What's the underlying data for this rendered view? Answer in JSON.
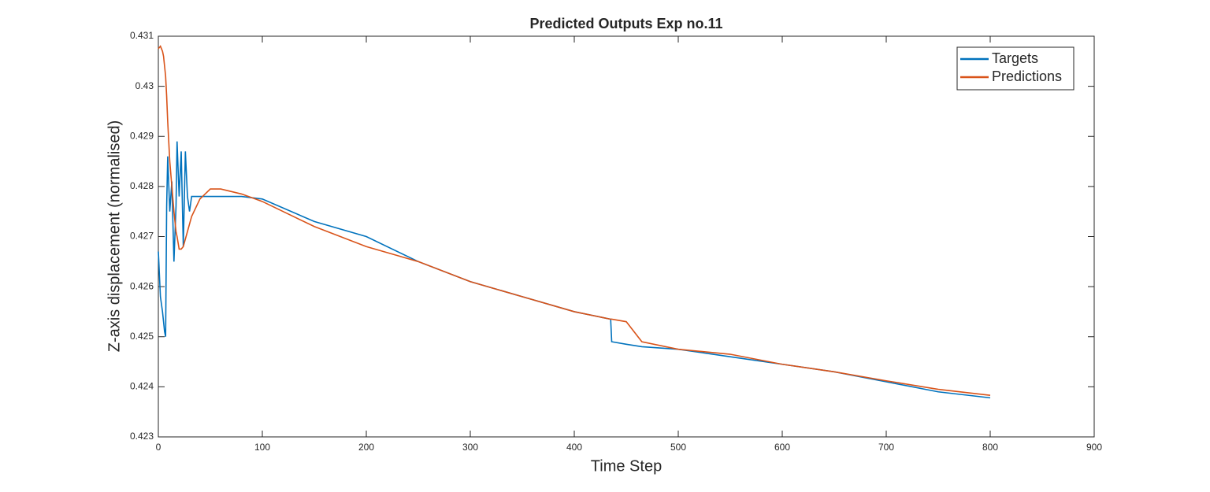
{
  "chart_data": {
    "type": "line",
    "title": "Predicted Outputs Exp no.11",
    "x_label": "Time Step",
    "y_label": "Z-axis displacement (normalised)",
    "x": [
      0,
      2,
      4,
      5,
      6,
      7,
      8,
      9,
      11,
      13,
      15,
      17,
      18,
      20,
      22,
      24,
      26,
      28,
      30,
      32,
      40,
      50,
      60,
      80,
      100,
      150,
      200,
      250,
      300,
      350,
      400,
      435,
      436,
      450,
      465,
      500,
      550,
      600,
      650,
      700,
      750,
      800
    ],
    "series": [
      {
        "name": "Targets",
        "color": "#0072bd",
        "values": [
          0.4267,
          0.4258,
          0.4255,
          0.4253,
          0.4251,
          0.425,
          0.4276,
          0.4286,
          0.4275,
          0.4281,
          0.4265,
          0.4276,
          0.4289,
          0.4278,
          0.4287,
          0.4268,
          0.4287,
          0.4278,
          0.4275,
          0.4278,
          0.4278,
          0.4278,
          0.4278,
          0.4278,
          0.42775,
          0.4273,
          0.427,
          0.4265,
          0.4261,
          0.4258,
          0.4255,
          0.42535,
          0.4249,
          0.42485,
          0.4248,
          0.42475,
          0.4246,
          0.42445,
          0.4243,
          0.4241,
          0.4239,
          0.42378
        ]
      },
      {
        "name": "Predictions",
        "color": "#d95319",
        "values": [
          0.43075,
          0.4308,
          0.4307,
          0.4306,
          0.4304,
          0.4302,
          0.4298,
          0.4293,
          0.4285,
          0.428,
          0.4275,
          0.4271,
          0.427,
          0.42675,
          0.42675,
          0.4268,
          0.42695,
          0.4271,
          0.42725,
          0.4274,
          0.42775,
          0.42795,
          0.42795,
          0.42785,
          0.4277,
          0.4272,
          0.4268,
          0.4265,
          0.4261,
          0.4258,
          0.4255,
          0.42535,
          0.42535,
          0.4253,
          0.4249,
          0.42475,
          0.42465,
          0.42445,
          0.4243,
          0.42412,
          0.42395,
          0.42383
        ]
      }
    ],
    "xlim": [
      0,
      900
    ],
    "xticks": [
      0,
      100,
      200,
      300,
      400,
      500,
      600,
      700,
      800,
      900
    ],
    "ylim": [
      0.423,
      0.431
    ],
    "yticks": [
      0.423,
      0.424,
      0.425,
      0.426,
      0.427,
      0.428,
      0.429,
      0.43,
      0.431
    ],
    "legend": "upper right",
    "grid": false
  }
}
